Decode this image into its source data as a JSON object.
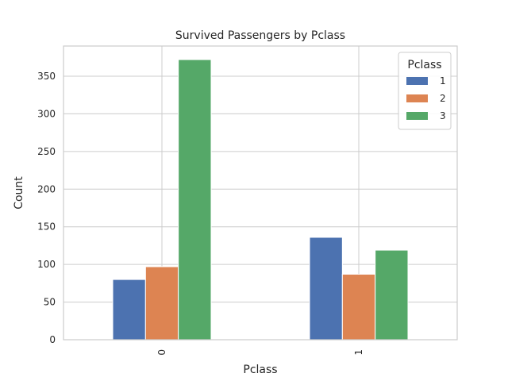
{
  "chart_data": {
    "type": "bar",
    "title": "Survived Passengers by Pclass",
    "xlabel": "Pclass",
    "ylabel": "Count",
    "categories": [
      "0",
      "1"
    ],
    "series": [
      {
        "name": "1",
        "values": [
          80,
          136
        ],
        "color": "#4c72b0"
      },
      {
        "name": "2",
        "values": [
          97,
          87
        ],
        "color": "#dd8452"
      },
      {
        "name": "3",
        "values": [
          372,
          119
        ],
        "color": "#55a868"
      }
    ],
    "ylim": [
      0,
      390
    ],
    "yticks": [
      0,
      50,
      100,
      150,
      200,
      250,
      300,
      350
    ],
    "legend": {
      "title": "Pclass",
      "placement": "top-right"
    },
    "grid": true,
    "xtick_rotation": 90
  }
}
